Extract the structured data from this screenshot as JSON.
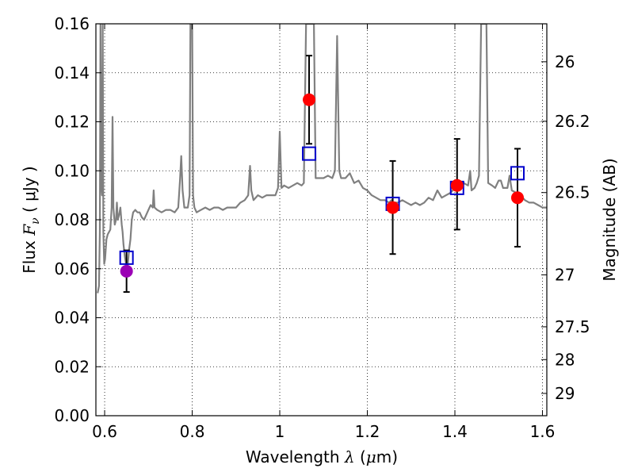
{
  "chart_data": {
    "type": "line",
    "xlabel": {
      "prefix": "Wavelength",
      "symbol": "λ",
      "unit_open": " (",
      "unit_sym": "μ",
      "unit_rest": "m)"
    },
    "ylabel": {
      "prefix": "Flux",
      "symbol": "F",
      "sub": "ν",
      "unit": "( μJy )"
    },
    "y2label": "Magnitude (AB)",
    "xlim": [
      0.58,
      1.61
    ],
    "ylim": [
      0.0,
      0.16
    ],
    "grid": true,
    "x_ticks": [
      {
        "value": 0.6,
        "label": "0.6"
      },
      {
        "value": 0.8,
        "label": "0.8"
      },
      {
        "value": 1.0,
        "label": "1"
      },
      {
        "value": 1.2,
        "label": "1.2"
      },
      {
        "value": 1.4,
        "label": "1.4"
      },
      {
        "value": 1.6,
        "label": "1.6"
      }
    ],
    "y_ticks": [
      {
        "value": 0.0,
        "label": "0.00"
      },
      {
        "value": 0.02,
        "label": "0.02"
      },
      {
        "value": 0.04,
        "label": "0.04"
      },
      {
        "value": 0.06,
        "label": "0.06"
      },
      {
        "value": 0.08,
        "label": "0.08"
      },
      {
        "value": 0.1,
        "label": "0.10"
      },
      {
        "value": 0.12,
        "label": "0.12"
      },
      {
        "value": 0.14,
        "label": "0.14"
      },
      {
        "value": 0.16,
        "label": "0.16"
      }
    ],
    "y2_ticks": [
      {
        "flux": 0.1445,
        "label": "26"
      },
      {
        "flux": 0.1202,
        "label": "26.2"
      },
      {
        "flux": 0.0911,
        "label": "26.5"
      },
      {
        "flux": 0.0575,
        "label": "27"
      },
      {
        "flux": 0.0363,
        "label": "27.5"
      },
      {
        "flux": 0.0229,
        "label": "28"
      },
      {
        "flux": 0.0091,
        "label": "29"
      }
    ],
    "spectrum": {
      "color": "#808080",
      "points": [
        [
          0.584,
          0.05
        ],
        [
          0.587,
          0.053
        ],
        [
          0.589,
          0.075
        ],
        [
          0.5905,
          0.16
        ],
        [
          0.592,
          0.095
        ],
        [
          0.594,
          0.09
        ],
        [
          0.5955,
          0.16
        ],
        [
          0.597,
          0.075
        ],
        [
          0.599,
          0.062
        ],
        [
          0.601,
          0.064
        ],
        [
          0.604,
          0.072
        ],
        [
          0.607,
          0.074
        ],
        [
          0.61,
          0.075
        ],
        [
          0.613,
          0.076
        ],
        [
          0.616,
          0.085
        ],
        [
          0.618,
          0.122
        ],
        [
          0.62,
          0.085
        ],
        [
          0.623,
          0.078
        ],
        [
          0.626,
          0.08
        ],
        [
          0.628,
          0.087
        ],
        [
          0.63,
          0.08
        ],
        [
          0.633,
          0.082
        ],
        [
          0.636,
          0.085
        ],
        [
          0.639,
          0.078
        ],
        [
          0.641,
          0.075
        ],
        [
          0.643,
          0.07
        ],
        [
          0.646,
          0.065
        ],
        [
          0.649,
          0.062
        ],
        [
          0.651,
          0.06
        ],
        [
          0.653,
          0.062
        ],
        [
          0.656,
          0.068
        ],
        [
          0.659,
          0.072
        ],
        [
          0.662,
          0.08
        ],
        [
          0.665,
          0.083
        ],
        [
          0.67,
          0.084
        ],
        [
          0.675,
          0.083
        ],
        [
          0.68,
          0.083
        ],
        [
          0.685,
          0.081
        ],
        [
          0.69,
          0.08
        ],
        [
          0.695,
          0.082
        ],
        [
          0.7,
          0.084
        ],
        [
          0.705,
          0.086
        ],
        [
          0.71,
          0.085
        ],
        [
          0.712,
          0.092
        ],
        [
          0.714,
          0.085
        ],
        [
          0.72,
          0.084
        ],
        [
          0.73,
          0.083
        ],
        [
          0.74,
          0.084
        ],
        [
          0.75,
          0.084
        ],
        [
          0.76,
          0.083
        ],
        [
          0.768,
          0.085
        ],
        [
          0.772,
          0.096
        ],
        [
          0.775,
          0.106
        ],
        [
          0.778,
          0.092
        ],
        [
          0.782,
          0.085
        ],
        [
          0.79,
          0.085
        ],
        [
          0.794,
          0.09
        ],
        [
          0.796,
          0.16
        ],
        [
          0.8,
          0.16
        ],
        [
          0.802,
          0.09
        ],
        [
          0.805,
          0.085
        ],
        [
          0.81,
          0.083
        ],
        [
          0.82,
          0.084
        ],
        [
          0.83,
          0.085
        ],
        [
          0.84,
          0.084
        ],
        [
          0.85,
          0.085
        ],
        [
          0.86,
          0.085
        ],
        [
          0.87,
          0.084
        ],
        [
          0.88,
          0.085
        ],
        [
          0.89,
          0.085
        ],
        [
          0.9,
          0.085
        ],
        [
          0.91,
          0.087
        ],
        [
          0.92,
          0.088
        ],
        [
          0.928,
          0.09
        ],
        [
          0.932,
          0.102
        ],
        [
          0.935,
          0.092
        ],
        [
          0.94,
          0.088
        ],
        [
          0.95,
          0.09
        ],
        [
          0.96,
          0.089
        ],
        [
          0.97,
          0.09
        ],
        [
          0.98,
          0.09
        ],
        [
          0.99,
          0.09
        ],
        [
          0.996,
          0.093
        ],
        [
          1.0,
          0.116
        ],
        [
          1.004,
          0.093
        ],
        [
          1.01,
          0.094
        ],
        [
          1.02,
          0.093
        ],
        [
          1.03,
          0.094
        ],
        [
          1.04,
          0.095
        ],
        [
          1.05,
          0.094
        ],
        [
          1.055,
          0.095
        ],
        [
          1.06,
          0.16
        ],
        [
          1.066,
          0.16
        ],
        [
          1.072,
          0.16
        ],
        [
          1.078,
          0.16
        ],
        [
          1.082,
          0.097
        ],
        [
          1.09,
          0.097
        ],
        [
          1.1,
          0.097
        ],
        [
          1.11,
          0.098
        ],
        [
          1.12,
          0.097
        ],
        [
          1.126,
          0.1
        ],
        [
          1.131,
          0.155
        ],
        [
          1.136,
          0.1
        ],
        [
          1.14,
          0.097
        ],
        [
          1.15,
          0.097
        ],
        [
          1.16,
          0.099
        ],
        [
          1.17,
          0.095
        ],
        [
          1.18,
          0.096
        ],
        [
          1.19,
          0.093
        ],
        [
          1.2,
          0.092
        ],
        [
          1.21,
          0.09
        ],
        [
          1.22,
          0.089
        ],
        [
          1.23,
          0.088
        ],
        [
          1.24,
          0.088
        ],
        [
          1.25,
          0.087
        ],
        [
          1.255,
          0.088
        ],
        [
          1.26,
          0.087
        ],
        [
          1.27,
          0.087
        ],
        [
          1.28,
          0.088
        ],
        [
          1.29,
          0.087
        ],
        [
          1.3,
          0.086
        ],
        [
          1.31,
          0.087
        ],
        [
          1.32,
          0.086
        ],
        [
          1.33,
          0.087
        ],
        [
          1.34,
          0.089
        ],
        [
          1.35,
          0.088
        ],
        [
          1.36,
          0.092
        ],
        [
          1.37,
          0.089
        ],
        [
          1.38,
          0.09
        ],
        [
          1.39,
          0.091
        ],
        [
          1.4,
          0.093
        ],
        [
          1.41,
          0.094
        ],
        [
          1.42,
          0.095
        ],
        [
          1.43,
          0.094
        ],
        [
          1.435,
          0.1
        ],
        [
          1.438,
          0.092
        ],
        [
          1.445,
          0.093
        ],
        [
          1.45,
          0.095
        ],
        [
          1.455,
          0.098
        ],
        [
          1.46,
          0.16
        ],
        [
          1.466,
          0.16
        ],
        [
          1.472,
          0.16
        ],
        [
          1.476,
          0.095
        ],
        [
          1.485,
          0.094
        ],
        [
          1.492,
          0.093
        ],
        [
          1.5,
          0.096
        ],
        [
          1.505,
          0.096
        ],
        [
          1.51,
          0.093
        ],
        [
          1.52,
          0.093
        ],
        [
          1.525,
          0.098
        ],
        [
          1.53,
          0.092
        ],
        [
          1.54,
          0.091
        ],
        [
          1.55,
          0.09
        ],
        [
          1.56,
          0.088
        ],
        [
          1.57,
          0.087
        ],
        [
          1.58,
          0.087
        ],
        [
          1.59,
          0.086
        ],
        [
          1.6,
          0.085
        ],
        [
          1.61,
          0.085
        ]
      ]
    },
    "model_points": {
      "marker": "open-square",
      "color": "#0000cc",
      "points": [
        [
          0.65,
          0.0645
        ],
        [
          1.067,
          0.107
        ],
        [
          1.258,
          0.0865
        ],
        [
          1.405,
          0.093
        ],
        [
          1.543,
          0.099
        ]
      ]
    },
    "observed_points": {
      "marker": "filled-circle",
      "color": "#ff0000",
      "points": [
        {
          "x": 0.65,
          "y": 0.059,
          "err_low": 0.0505,
          "err_high": 0.0675,
          "color": "#9b00b5"
        },
        {
          "x": 1.067,
          "y": 0.129,
          "err_low": 0.111,
          "err_high": 0.147
        },
        {
          "x": 1.258,
          "y": 0.085,
          "err_low": 0.066,
          "err_high": 0.104
        },
        {
          "x": 1.405,
          "y": 0.094,
          "err_low": 0.076,
          "err_high": 0.113
        },
        {
          "x": 1.543,
          "y": 0.089,
          "err_low": 0.069,
          "err_high": 0.109
        }
      ]
    }
  }
}
